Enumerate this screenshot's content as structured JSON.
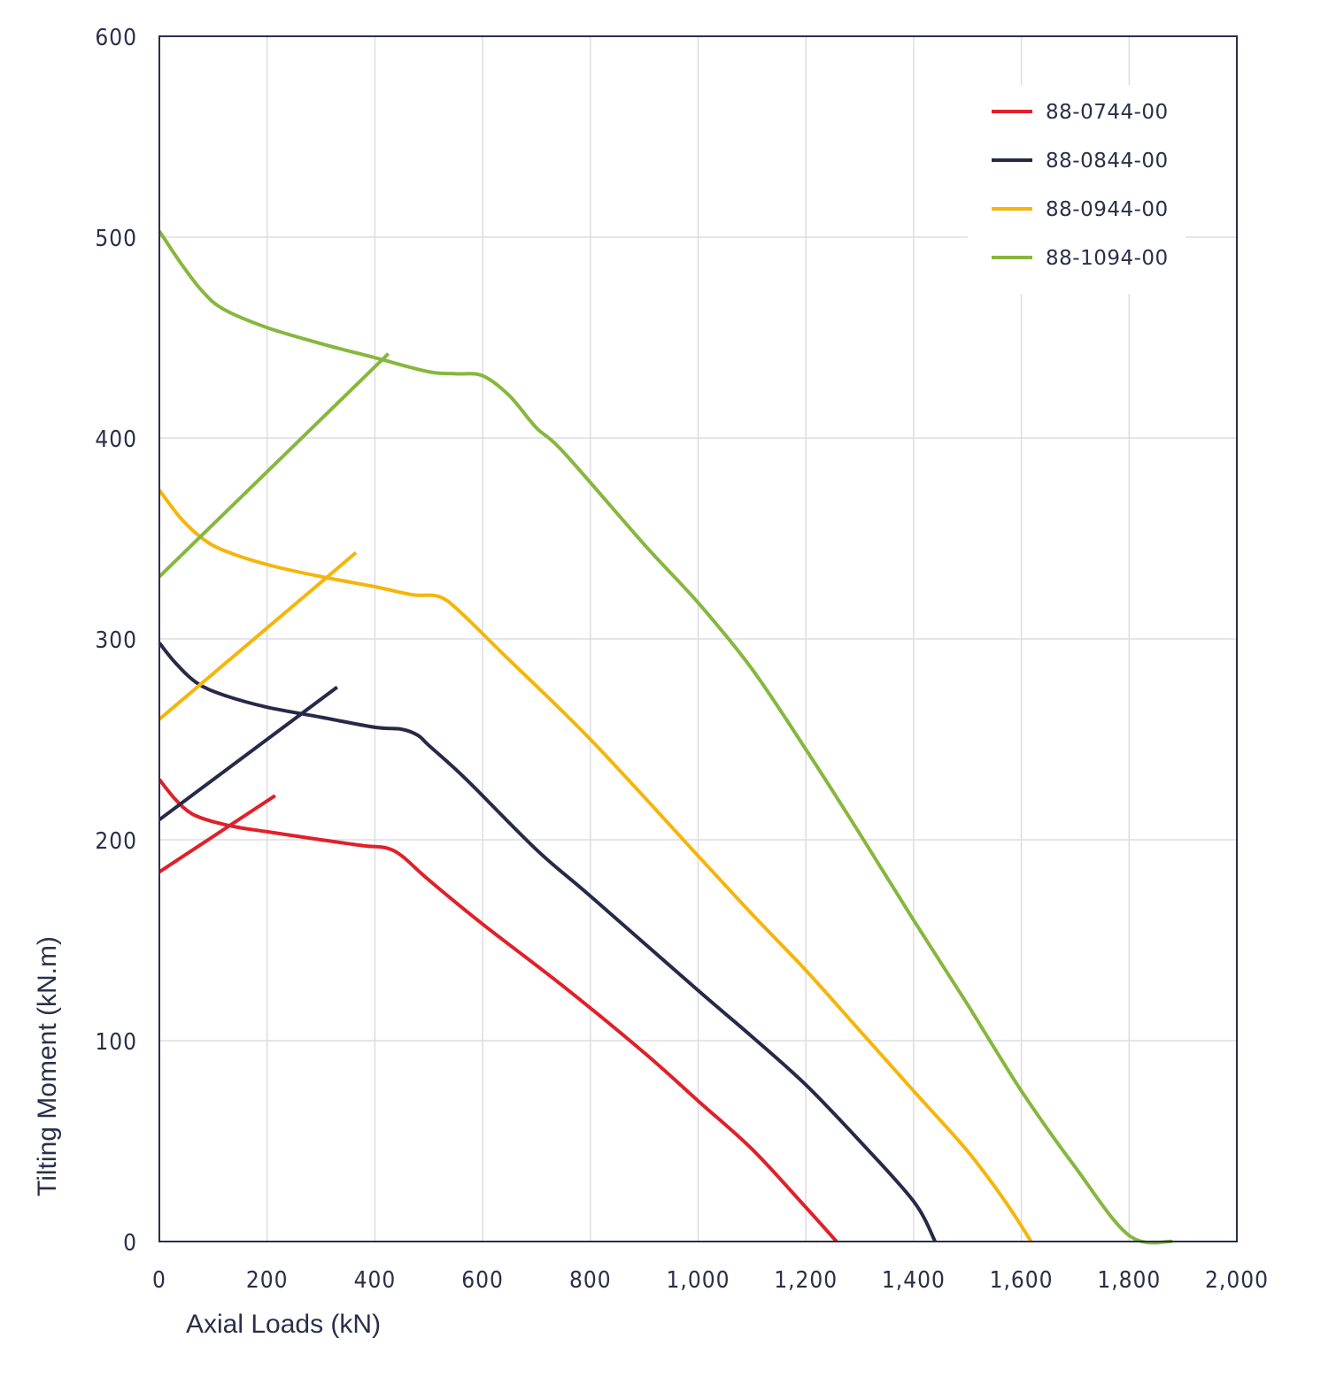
{
  "chart_data": {
    "type": "line",
    "title": "",
    "xlabel": "Axial Loads (kN)",
    "ylabel": "Tilting Moment (kN.m)",
    "xlim": [
      0,
      2000
    ],
    "ylim": [
      0,
      600
    ],
    "x_ticks": [
      0,
      200,
      400,
      600,
      800,
      1000,
      1200,
      1400,
      1600,
      1800,
      2000
    ],
    "x_tick_labels": [
      "0",
      "200",
      "400",
      "600",
      "800",
      "1,000",
      "1,200",
      "1,400",
      "1,600",
      "1,800",
      "2,000"
    ],
    "y_ticks": [
      0,
      100,
      200,
      300,
      400,
      500,
      600
    ],
    "y_tick_labels": [
      "0",
      "100",
      "200",
      "300",
      "400",
      "500",
      "600"
    ],
    "grid": true,
    "legend_position": "top-right",
    "series": [
      {
        "name": "88-0744-00",
        "color": "#e0202a",
        "curve": [
          [
            0,
            230
          ],
          [
            30,
            220
          ],
          [
            60,
            213
          ],
          [
            100,
            209
          ],
          [
            150,
            206
          ],
          [
            200,
            204
          ],
          [
            300,
            200
          ],
          [
            380,
            197
          ],
          [
            420,
            196
          ],
          [
            450,
            192
          ],
          [
            500,
            180
          ],
          [
            600,
            158
          ],
          [
            750,
            127
          ],
          [
            900,
            94
          ],
          [
            1000,
            70
          ],
          [
            1100,
            46
          ],
          [
            1200,
            17
          ],
          [
            1257,
            0
          ]
        ],
        "line": [
          [
            0,
            184
          ],
          [
            215,
            222
          ]
        ]
      },
      {
        "name": "88-0844-00",
        "color": "#262a48",
        "curve": [
          [
            0,
            298
          ],
          [
            30,
            288
          ],
          [
            70,
            278
          ],
          [
            120,
            272
          ],
          [
            200,
            266
          ],
          [
            300,
            261
          ],
          [
            400,
            256
          ],
          [
            450,
            255
          ],
          [
            480,
            252
          ],
          [
            500,
            247
          ],
          [
            570,
            230
          ],
          [
            700,
            195
          ],
          [
            800,
            172
          ],
          [
            1000,
            125
          ],
          [
            1100,
            102
          ],
          [
            1200,
            78
          ],
          [
            1300,
            50
          ],
          [
            1400,
            20
          ],
          [
            1440,
            0
          ]
        ],
        "line": [
          [
            0,
            210
          ],
          [
            330,
            276
          ]
        ]
      },
      {
        "name": "88-0944-00",
        "color": "#f5b50a",
        "curve": [
          [
            0,
            374
          ],
          [
            40,
            360
          ],
          [
            80,
            350
          ],
          [
            120,
            344
          ],
          [
            200,
            337
          ],
          [
            300,
            331
          ],
          [
            400,
            326
          ],
          [
            470,
            322
          ],
          [
            520,
            321
          ],
          [
            560,
            313
          ],
          [
            640,
            292
          ],
          [
            800,
            250
          ],
          [
            1000,
            192
          ],
          [
            1100,
            163
          ],
          [
            1200,
            135
          ],
          [
            1300,
            105
          ],
          [
            1400,
            75
          ],
          [
            1500,
            45
          ],
          [
            1570,
            20
          ],
          [
            1618,
            0
          ]
        ],
        "line": [
          [
            0,
            260
          ],
          [
            365,
            343
          ]
        ]
      },
      {
        "name": "88-1094-00",
        "color": "#86b73e",
        "curve": [
          [
            0,
            503
          ],
          [
            40,
            487
          ],
          [
            80,
            473
          ],
          [
            120,
            464
          ],
          [
            200,
            455
          ],
          [
            300,
            447
          ],
          [
            400,
            440
          ],
          [
            500,
            433
          ],
          [
            550,
            432
          ],
          [
            600,
            431
          ],
          [
            650,
            421
          ],
          [
            700,
            405
          ],
          [
            750,
            393
          ],
          [
            900,
            347
          ],
          [
            1000,
            318
          ],
          [
            1100,
            285
          ],
          [
            1200,
            245
          ],
          [
            1300,
            203
          ],
          [
            1400,
            160
          ],
          [
            1500,
            118
          ],
          [
            1600,
            75
          ],
          [
            1700,
            37
          ],
          [
            1800,
            3
          ],
          [
            1880,
            0
          ]
        ],
        "line": [
          [
            0,
            331
          ],
          [
            425,
            442
          ]
        ]
      }
    ]
  }
}
